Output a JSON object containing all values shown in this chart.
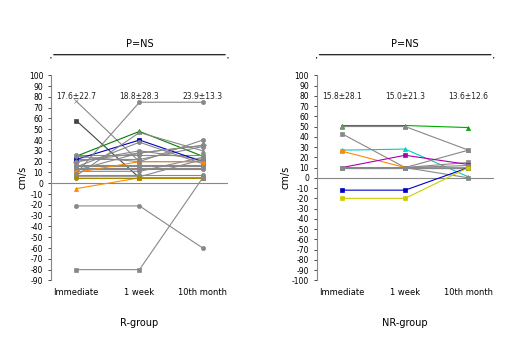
{
  "left_title": "P=NS",
  "right_title": "P=NS",
  "left_means": [
    "17.6±22.7",
    "18.8±28.3",
    "23.9±13.3"
  ],
  "right_means": [
    "15.8±28.1",
    "15.0±21.3",
    "13.6±12.6"
  ],
  "left_ylabel": "cm/s",
  "right_ylabel": "cm/s",
  "left_xlabel": "R-group",
  "right_xlabel": "NR-group",
  "xtick_labels": [
    "Immediate",
    "1 week",
    "10th month"
  ],
  "left_ylim": [
    -90,
    100
  ],
  "right_ylim": [
    -100,
    100
  ],
  "left_yticks": [
    100,
    90,
    80,
    70,
    60,
    50,
    40,
    30,
    20,
    10,
    0,
    -10,
    -20,
    -30,
    -40,
    -50,
    -60,
    -70,
    -80,
    -90
  ],
  "right_yticks": [
    100,
    90,
    80,
    70,
    60,
    50,
    40,
    30,
    20,
    10,
    0,
    -10,
    -20,
    -30,
    -40,
    -50,
    -60,
    -70,
    -80,
    -90,
    -100
  ],
  "left_data": [
    {
      "values": [
        76,
        20,
        20
      ],
      "color": "#888888",
      "marker": "x"
    },
    {
      "values": [
        58,
        5,
        5
      ],
      "color": "#444444",
      "marker": "s"
    },
    {
      "values": [
        -5,
        5,
        5
      ],
      "color": "#ff8c00",
      "marker": "^"
    },
    {
      "values": [
        25,
        48,
        25
      ],
      "color": "#008000",
      "marker": "^"
    },
    {
      "values": [
        22,
        22,
        34
      ],
      "color": "#888888",
      "marker": "o"
    },
    {
      "values": [
        20,
        30,
        22
      ],
      "color": "#888888",
      "marker": "o"
    },
    {
      "values": [
        26,
        26,
        26
      ],
      "color": "#888888",
      "marker": "o"
    },
    {
      "values": [
        22,
        40,
        20
      ],
      "color": "#0000bb",
      "marker": "s"
    },
    {
      "values": [
        17,
        17,
        17
      ],
      "color": "#888888",
      "marker": "o"
    },
    {
      "values": [
        16,
        16,
        16
      ],
      "color": "#888888",
      "marker": "o"
    },
    {
      "values": [
        15,
        38,
        18
      ],
      "color": "#888888",
      "marker": "o"
    },
    {
      "values": [
        14,
        14,
        14
      ],
      "color": "#888888",
      "marker": "o"
    },
    {
      "values": [
        13,
        13,
        13
      ],
      "color": "#888888",
      "marker": "o"
    },
    {
      "values": [
        12,
        28,
        35
      ],
      "color": "#888888",
      "marker": "o"
    },
    {
      "values": [
        11,
        11,
        24
      ],
      "color": "#888888",
      "marker": "o"
    },
    {
      "values": [
        10,
        20,
        20
      ],
      "color": "#ff8800",
      "marker": "o"
    },
    {
      "values": [
        9,
        75,
        75
      ],
      "color": "#888888",
      "marker": "o"
    },
    {
      "values": [
        8,
        8,
        8
      ],
      "color": "#888888",
      "marker": "o"
    },
    {
      "values": [
        7,
        47,
        30
      ],
      "color": "#888888",
      "marker": "^"
    },
    {
      "values": [
        6,
        6,
        22
      ],
      "color": "#888888",
      "marker": "o"
    },
    {
      "values": [
        5,
        5,
        5
      ],
      "color": "#aa8800",
      "marker": "o"
    },
    {
      "values": [
        25,
        20,
        40
      ],
      "color": "#888888",
      "marker": "o"
    },
    {
      "values": [
        20,
        28,
        35
      ],
      "color": "#888888",
      "marker": "D"
    },
    {
      "values": [
        -21,
        -21,
        -60
      ],
      "color": "#888888",
      "marker": "o"
    },
    {
      "values": [
        -80,
        -80,
        5
      ],
      "color": "#888888",
      "marker": "s"
    }
  ],
  "right_data": [
    {
      "values": [
        51,
        51,
        49
      ],
      "color": "#00aa00",
      "marker": "^"
    },
    {
      "values": [
        50,
        50,
        27
      ],
      "color": "#888888",
      "marker": "^"
    },
    {
      "values": [
        27,
        28,
        1
      ],
      "color": "#00cccc",
      "marker": "^"
    },
    {
      "values": [
        43,
        10,
        27
      ],
      "color": "#888888",
      "marker": "s"
    },
    {
      "values": [
        26,
        10,
        10
      ],
      "color": "#ff8800",
      "marker": "s"
    },
    {
      "values": [
        10,
        10,
        15
      ],
      "color": "#888888",
      "marker": "s"
    },
    {
      "values": [
        10,
        22,
        13
      ],
      "color": "#aa00aa",
      "marker": "s"
    },
    {
      "values": [
        10,
        10,
        10
      ],
      "color": "#888888",
      "marker": "s"
    },
    {
      "values": [
        10,
        10,
        12
      ],
      "color": "#888888",
      "marker": "s"
    },
    {
      "values": [
        10,
        10,
        10
      ],
      "color": "#00aa44",
      "marker": "s"
    },
    {
      "values": [
        10,
        10,
        0
      ],
      "color": "#888888",
      "marker": "s"
    },
    {
      "values": [
        10,
        10,
        10
      ],
      "color": "#888888",
      "marker": "s"
    },
    {
      "values": [
        -12,
        -12,
        10
      ],
      "color": "#0000cc",
      "marker": "s"
    },
    {
      "values": [
        -20,
        -20,
        10
      ],
      "color": "#cccc00",
      "marker": "s"
    }
  ],
  "background_color": "#ffffff"
}
